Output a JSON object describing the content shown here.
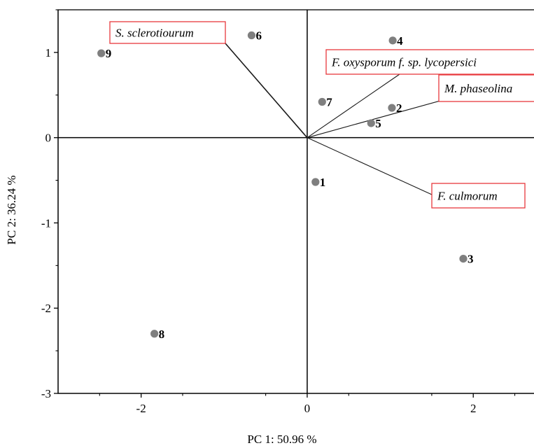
{
  "chart_data": {
    "type": "scatter",
    "title": "",
    "xlabel": "PC 1: 50.96 %",
    "ylabel": "PC 2: 36.24 %",
    "xlim": [
      -3.0,
      2.9
    ],
    "ylim": [
      -3,
      1.5
    ],
    "xticks": [
      -2,
      0,
      2
    ],
    "xtick_labels": [
      "-2",
      "0",
      "2"
    ],
    "yticks": [
      -3,
      -2,
      -1,
      0,
      1
    ],
    "ytick_labels": [
      "-3",
      "-2",
      "-1",
      "0",
      "1"
    ],
    "grid": false,
    "origin_lines": true,
    "marker_color": "#7f7f7f",
    "vector_label_border_color": "#e8383d",
    "points": [
      {
        "label": "1",
        "x": 0.1,
        "y": -0.52
      },
      {
        "label": "2",
        "x": 1.02,
        "y": 0.35
      },
      {
        "label": "3",
        "x": 1.88,
        "y": -1.42
      },
      {
        "label": "4",
        "x": 1.03,
        "y": 1.14
      },
      {
        "label": "5",
        "x": 0.77,
        "y": 0.17
      },
      {
        "label": "6",
        "x": -0.67,
        "y": 1.2
      },
      {
        "label": "7",
        "x": 0.18,
        "y": 0.42
      },
      {
        "label": "8",
        "x": -1.84,
        "y": -2.3
      },
      {
        "label": "9",
        "x": -2.48,
        "y": 0.99
      }
    ],
    "vectors": [
      {
        "label": "S. sclerotiourum",
        "x": -1.15,
        "y": 1.23
      },
      {
        "label": "F. oxysporum f. sp. lycopersici",
        "x": 1.25,
        "y": 0.78
      },
      {
        "label": "M. phaseolina",
        "x": 1.8,
        "y": 0.47
      },
      {
        "label": "F. culmorum",
        "x": 1.6,
        "y": -0.68
      }
    ]
  }
}
